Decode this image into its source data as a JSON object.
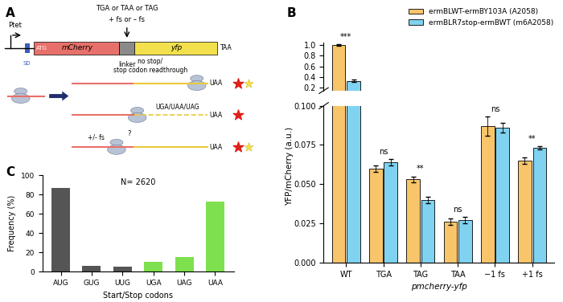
{
  "diagram": {
    "label": "A",
    "promoter": "Ptet",
    "sd": "SD",
    "start": "ATG",
    "gene1": "mCherry",
    "linker": "linker",
    "gene2": "yfp",
    "stop": "TAA",
    "insert": [
      "TGA or TAA or TAG",
      "+ fs or – fs"
    ],
    "outcomes": [
      {
        "label": "no stop/\nstop codon readthrough",
        "stop": "UAA"
      },
      {
        "label": "UGA/UAA/UAG",
        "stop": "UAA"
      },
      {
        "label": "+/- fs",
        "note": "?",
        "stop": "UAA"
      }
    ]
  },
  "chart_data": [
    {
      "type": "bar",
      "panel": "B",
      "x_label": "pmcherry-yfp",
      "y_label": "YFP/mCherry (a.u.)",
      "categories": [
        "WT",
        "TGA",
        "TAG",
        "TAA",
        "−1 fs",
        "+1 fs"
      ],
      "series": [
        {
          "name": "ermBLWT-ermBY103A (A2058)",
          "color": "#F9C56A",
          "values": [
            1.0,
            0.06,
            0.053,
            0.026,
            0.087,
            0.065
          ],
          "errors": [
            0.01,
            0.002,
            0.002,
            0.002,
            0.006,
            0.002
          ]
        },
        {
          "name": "ermBLR7stop-ermBWT (m6A2058)",
          "color": "#7FD3F0",
          "values": [
            0.33,
            0.064,
            0.04,
            0.027,
            0.086,
            0.073
          ],
          "errors": [
            0.02,
            0.002,
            0.002,
            0.002,
            0.003,
            0.001
          ]
        }
      ],
      "annotations": [
        "***",
        "ns",
        "**",
        "ns",
        "ns",
        "**"
      ],
      "legend": "upper right",
      "segments": [
        {
          "ylim": [
            0,
            0.1
          ],
          "yticks": [
            {
              "value": 0,
              "label": "0.000"
            },
            0.025,
            {
              "value": 0.05,
              "label": "0.050"
            },
            0.075,
            {
              "value": 0.1,
              "label": "0.100"
            }
          ]
        },
        {
          "ylim": [
            0.15,
            1.05
          ],
          "yticks": [
            0.2,
            0.4,
            0.6,
            0.8,
            1.0
          ]
        }
      ]
    },
    {
      "type": "bar",
      "panel": "C",
      "annotation": "N= 2620",
      "x_label": "Start/Stop codons",
      "y_label": "Frequency (%)",
      "categories": [
        "AUG",
        "GUG",
        "UUG",
        "UGA",
        "UAG",
        "UAA"
      ],
      "values": [
        87,
        6,
        5,
        10,
        15,
        73
      ],
      "colors": [
        "#555555",
        "#555555",
        "#555555",
        "#7FE04F",
        "#7FE04F",
        "#7FE04F"
      ],
      "ylim": [
        0,
        100
      ],
      "yticks": [
        0,
        20,
        40,
        60,
        80,
        100
      ]
    }
  ]
}
